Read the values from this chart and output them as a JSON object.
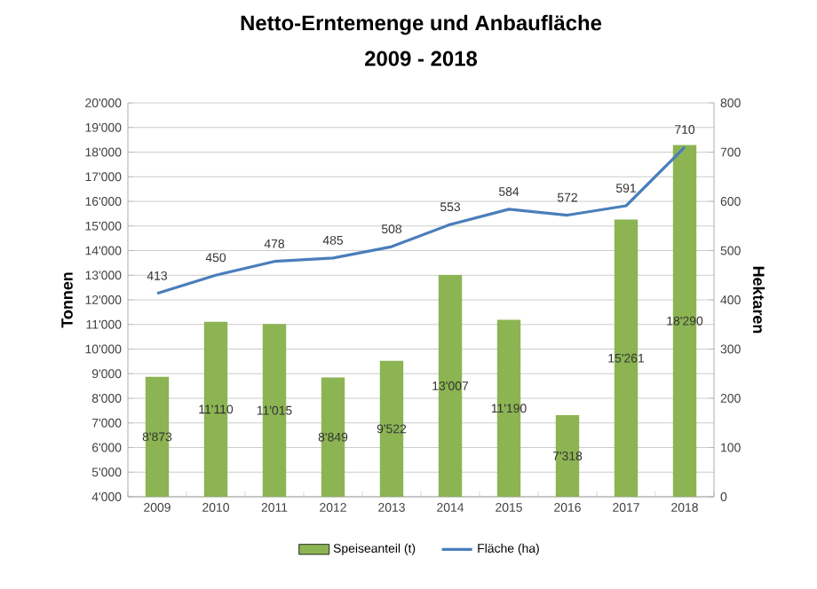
{
  "chart_data": {
    "type": "bar",
    "title": "Netto-Erntemenge und Anbaufläche",
    "subtitle": "2009 - 2018",
    "ylabel": "Tonnen",
    "y2label": "Hektaren",
    "categories": [
      "2009",
      "2010",
      "2011",
      "2012",
      "2013",
      "2014",
      "2015",
      "2016",
      "2017",
      "2018"
    ],
    "series": [
      {
        "name": "Speiseanteil (t)",
        "color": "#8cb453",
        "values": [
          8873,
          11110,
          11015,
          8849,
          9522,
          13007,
          11190,
          7318,
          15261,
          18290
        ],
        "value_labels": [
          "8'873",
          "11'110",
          "11'015",
          "8'849",
          "9'522",
          "13'007",
          "11'190",
          "7'318",
          "15'261",
          "18'290"
        ]
      },
      {
        "name": "Fläche (ha)",
        "type": "line",
        "axis": "y2",
        "color": "#4a7ebb",
        "values": [
          413,
          450,
          478,
          485,
          508,
          553,
          584,
          572,
          591,
          710
        ],
        "value_labels": [
          "413",
          "450",
          "478",
          "485",
          "508",
          "553",
          "584",
          "572",
          "591",
          "710"
        ]
      }
    ],
    "ylim": [
      4000,
      20000
    ],
    "yticks": [
      {
        "value": 4000,
        "label": "4'000"
      },
      {
        "value": 5000,
        "label": "5'000"
      },
      {
        "value": 6000,
        "label": "6'000"
      },
      {
        "value": 7000,
        "label": "7'000"
      },
      {
        "value": 8000,
        "label": "8'000"
      },
      {
        "value": 9000,
        "label": "9'000"
      },
      {
        "value": 10000,
        "label": "10'000"
      },
      {
        "value": 11000,
        "label": "11'000"
      },
      {
        "value": 12000,
        "label": "12'000"
      },
      {
        "value": 13000,
        "label": "13'000"
      },
      {
        "value": 14000,
        "label": "14'000"
      },
      {
        "value": 15000,
        "label": "15'000"
      },
      {
        "value": 16000,
        "label": "16'000"
      },
      {
        "value": 17000,
        "label": "17'000"
      },
      {
        "value": 18000,
        "label": "18'000"
      },
      {
        "value": 19000,
        "label": "19'000"
      },
      {
        "value": 20000,
        "label": "20'000"
      }
    ],
    "y2lim": [
      0,
      800
    ],
    "y2ticks": [
      0,
      100,
      200,
      300,
      400,
      500,
      600,
      700,
      800
    ],
    "grid": "y",
    "legend": "bottom"
  }
}
